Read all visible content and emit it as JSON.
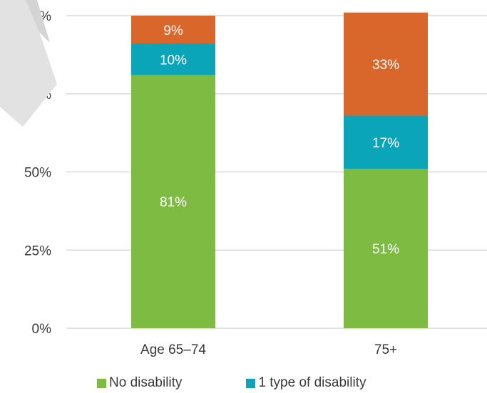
{
  "chart_data": {
    "type": "bar",
    "stacked": true,
    "categories": [
      "Age 65–74",
      "75+"
    ],
    "series": [
      {
        "name": "No disability",
        "color": "#7dbb42",
        "values": [
          81,
          51
        ],
        "labels": [
          "81%",
          "51%"
        ]
      },
      {
        "name": "1 type of disability",
        "color": "#0aa5b8",
        "values": [
          10,
          17
        ],
        "labels": [
          "10%",
          "17%"
        ]
      },
      {
        "name": "",
        "color": "#d9662b",
        "values": [
          9,
          33
        ],
        "labels": [
          "9%",
          "33%"
        ]
      }
    ],
    "yticks": [
      0,
      25,
      50,
      75,
      100
    ],
    "ytick_labels": [
      "0%",
      "25%",
      "50%",
      "75%",
      "100%"
    ],
    "ylim": [
      0,
      100
    ],
    "grid": true,
    "legend_placement": "bottom",
    "title": "",
    "xlabel": "",
    "ylabel": ""
  },
  "legend": {
    "items": [
      {
        "label": "No disability",
        "color": "#7dbb42"
      },
      {
        "label": "1 type of disability",
        "color": "#0aa5b8"
      }
    ]
  }
}
